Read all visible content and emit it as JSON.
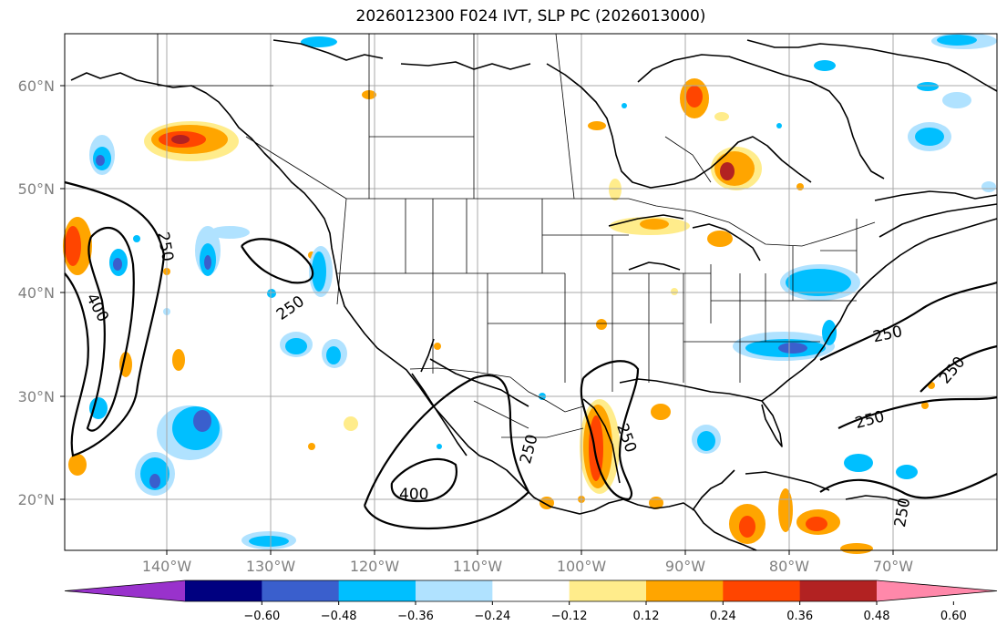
{
  "title": "2026012300 F024 IVT, SLP PC (2026013000)",
  "lat_labels": [
    "60°N",
    "50°N",
    "40°N",
    "30°N",
    "20°N"
  ],
  "lon_labels": [
    "140°W",
    "130°W",
    "120°W",
    "110°W",
    "100°W",
    "90°W",
    "80°W",
    "70°W"
  ],
  "contour_labels": [
    "250",
    "400",
    "250",
    "400",
    "250",
    "250",
    "250",
    "250",
    "250",
    "250"
  ],
  "colorbar": {
    "tick_labels": [
      "−0.60",
      "−0.48",
      "−0.36",
      "−0.24",
      "−0.12",
      "0.12",
      "0.24",
      "0.36",
      "0.48",
      "0.60"
    ],
    "colors": [
      "#9932cc",
      "#000080",
      "#3a5fcd",
      "#00bfff",
      "#b0e2ff",
      "#ffffff",
      "#ffec8b",
      "#ffa500",
      "#ff4500",
      "#b22222",
      "#ff88aa"
    ]
  }
}
